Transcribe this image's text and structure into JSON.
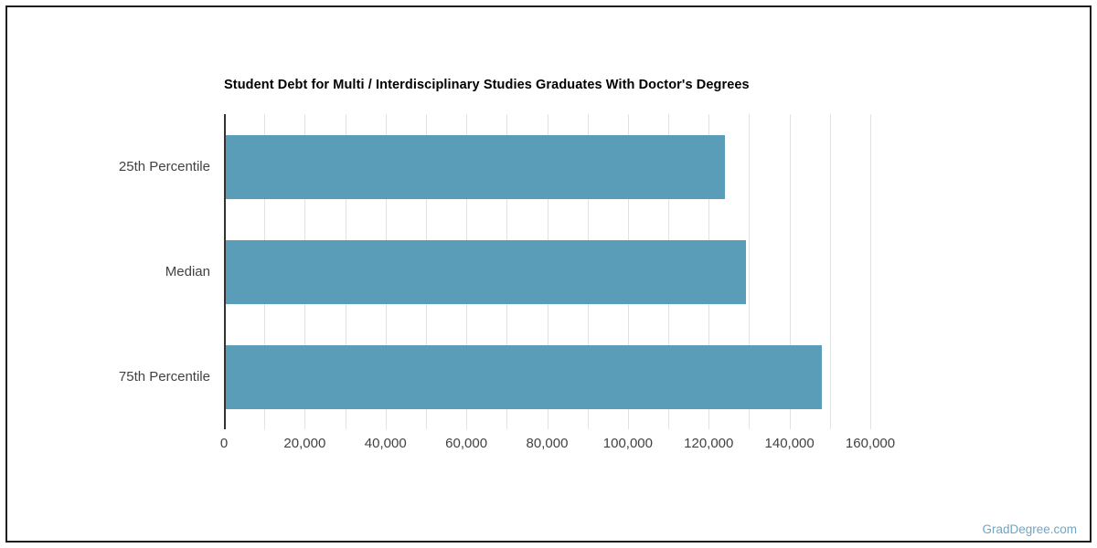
{
  "page": {
    "watermark": "GradDegree.com"
  },
  "colors": {
    "bar": "#5A9DB8",
    "axis_line": "#333333",
    "gridline": "#e2e2e2",
    "tick_text": "#424242",
    "title_text": "#000000",
    "watermark_text": "#72a5c3",
    "border": "#1f1f1f",
    "background": "#ffffff"
  },
  "chart_data": {
    "type": "bar",
    "orientation": "horizontal",
    "title": "Student Debt for Multi / Interdisciplinary Studies Graduates With Doctor's Degrees",
    "categories": [
      "25th Percentile",
      "Median",
      "75th Percentile"
    ],
    "values": [
      123500,
      128800,
      147600
    ],
    "xlabel": "",
    "ylabel": "",
    "xlim": [
      0,
      160000
    ],
    "x_ticks": [
      0,
      20000,
      40000,
      60000,
      80000,
      100000,
      120000,
      140000,
      160000
    ],
    "x_tick_labels": [
      "0",
      "20,000",
      "40,000",
      "60,000",
      "80,000",
      "100,000",
      "120,000",
      "140,000",
      "160,000"
    ],
    "minor_grid_step": 10000,
    "grid": true,
    "legend": "none"
  }
}
